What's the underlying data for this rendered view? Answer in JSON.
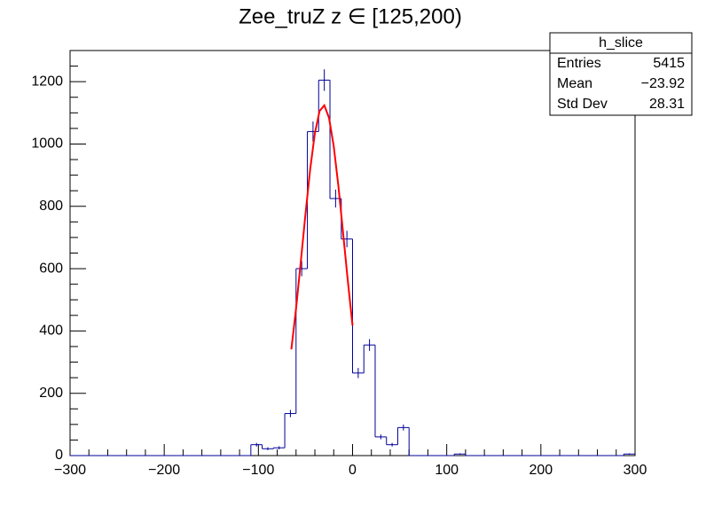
{
  "chart_data": {
    "type": "histogram",
    "title": "Zee_truZ z ∈ [125,200)",
    "bins": [
      -300,
      -288,
      -276,
      -264,
      -252,
      -240,
      -228,
      -216,
      -204,
      -192,
      -180,
      -168,
      -156,
      -144,
      -132,
      -120,
      -108,
      -96,
      -84,
      -72,
      -60,
      -48,
      -36,
      -24,
      -12,
      0,
      12,
      24,
      36,
      48,
      60,
      72,
      84,
      96,
      108,
      120,
      132,
      144,
      156,
      168,
      180,
      192,
      204,
      216,
      228,
      240,
      252,
      264,
      276,
      288,
      300
    ],
    "values": [
      0,
      0,
      0,
      0,
      0,
      0,
      0,
      0,
      0,
      0,
      0,
      0,
      0,
      0,
      0,
      0,
      35,
      22,
      25,
      135,
      600,
      1040,
      1205,
      825,
      695,
      265,
      355,
      60,
      35,
      90,
      0,
      0,
      0,
      0,
      5,
      0,
      0,
      0,
      0,
      0,
      0,
      0,
      0,
      0,
      0,
      0,
      0,
      0,
      0,
      5
    ],
    "errors": [
      0,
      0,
      0,
      0,
      0,
      0,
      0,
      0,
      0,
      0,
      0,
      0,
      0,
      0,
      0,
      0,
      5.9,
      4.7,
      5,
      11.6,
      24.5,
      32.2,
      34.7,
      28.7,
      26.4,
      16.3,
      18.8,
      7.7,
      5.9,
      9.5,
      0,
      0,
      0,
      0,
      2.2,
      0,
      0,
      0,
      0,
      0,
      0,
      0,
      0,
      0,
      0,
      0,
      0,
      0,
      0,
      2.2
    ],
    "color": "#000099",
    "fit": {
      "color": "#ff0000",
      "x": [
        -65,
        -60,
        -55,
        -50,
        -45,
        -40,
        -35,
        -30,
        -25,
        -20,
        -15,
        -10,
        -5,
        0
      ],
      "y": [
        341,
        472,
        621,
        775,
        919,
        1035,
        1106,
        1124,
        1084,
        993,
        864,
        713,
        560,
        417
      ]
    },
    "xlim": [
      -300,
      300
    ],
    "xticks": [
      {
        "value": -300,
        "label": "−300"
      },
      {
        "value": -200,
        "label": "−200"
      },
      {
        "value": -100,
        "label": "−100"
      },
      0,
      100,
      200,
      300
    ],
    "xminorticks": [
      -280,
      -260,
      -240,
      -220,
      -180,
      -160,
      -140,
      -120,
      -80,
      -60,
      -40,
      -20,
      20,
      40,
      60,
      80,
      120,
      140,
      160,
      180,
      220,
      240,
      260,
      280
    ],
    "ylim": [
      0,
      1300
    ],
    "yticks": [
      0,
      200,
      400,
      600,
      800,
      1000,
      1200
    ],
    "yminorticks": [
      50,
      100,
      150,
      250,
      300,
      350,
      450,
      500,
      550,
      650,
      700,
      750,
      850,
      900,
      950,
      1050,
      1100,
      1150,
      1250,
      1300
    ],
    "stats": {
      "title": "h_slice",
      "rows": [
        [
          "Entries",
          "5415"
        ],
        [
          "Mean",
          "−23.92"
        ],
        [
          "Std Dev",
          "28.31"
        ]
      ]
    }
  }
}
